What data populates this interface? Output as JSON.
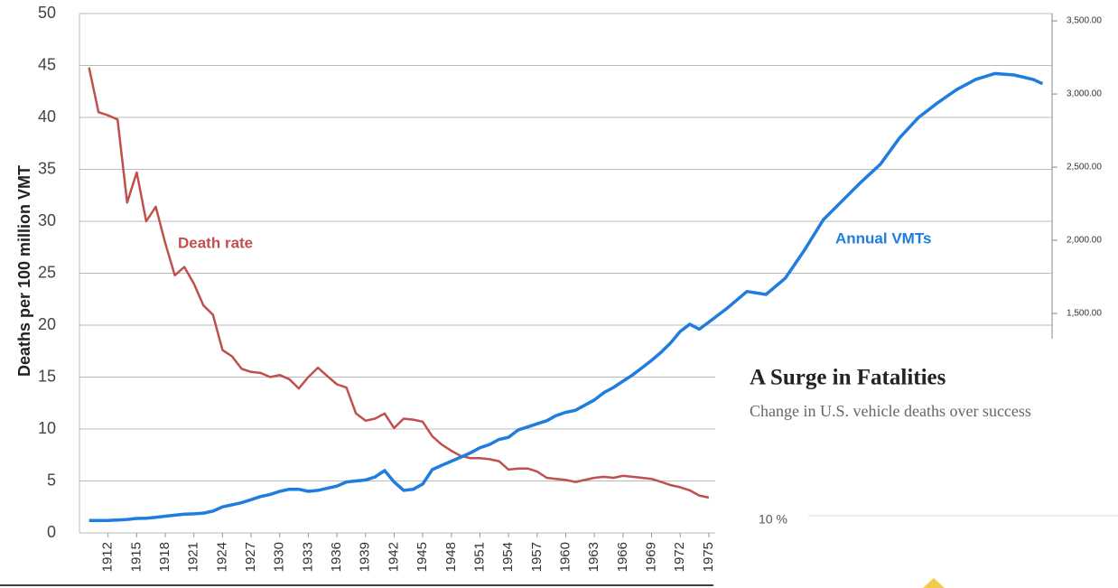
{
  "chart_data": {
    "type": "line",
    "y_label": "Deaths  per 100 million VMT",
    "annotations": [
      {
        "text": "Death rate",
        "color": "#c0504d"
      },
      {
        "text": "Annual VMTs",
        "color": "#1f7de0"
      }
    ],
    "x": [
      1910,
      1911,
      1912,
      1913,
      1914,
      1915,
      1916,
      1917,
      1918,
      1919,
      1920,
      1921,
      1922,
      1923,
      1924,
      1925,
      1926,
      1927,
      1928,
      1929,
      1930,
      1931,
      1932,
      1933,
      1934,
      1935,
      1936,
      1937,
      1938,
      1939,
      1940,
      1941,
      1942,
      1943,
      1944,
      1945,
      1946,
      1947,
      1948,
      1949,
      1950,
      1951,
      1952,
      1953,
      1954,
      1955,
      1956,
      1957,
      1958,
      1959,
      1960,
      1961,
      1962,
      1963,
      1964,
      1965,
      1966,
      1967,
      1968,
      1969,
      1970,
      1971,
      1972,
      1973,
      1974,
      1975,
      1977,
      1979,
      1981,
      1983,
      1985,
      1987,
      1989,
      1991,
      1993,
      1995,
      1997,
      1999,
      2001,
      2003,
      2005,
      2007,
      2009,
      2010
    ],
    "series": [
      {
        "name": "Death rate",
        "color": "#c0504d",
        "axis": "y",
        "values": [
          44.8,
          40.5,
          40.2,
          39.8,
          31.8,
          34.7,
          30.0,
          31.4,
          27.9,
          24.8,
          25.6,
          24.0,
          21.9,
          21.0,
          17.6,
          17.0,
          15.8,
          15.5,
          15.4,
          15.0,
          15.2,
          14.8,
          13.9,
          15.0,
          15.9,
          15.1,
          14.3,
          14.0,
          11.5,
          10.8,
          11.0,
          11.5,
          10.1,
          11.0,
          10.9,
          10.7,
          9.3,
          8.5,
          7.9,
          7.4,
          7.2,
          7.2,
          7.1,
          6.9,
          6.1,
          6.2,
          6.2,
          5.9,
          5.3,
          5.2,
          5.1,
          4.9,
          5.1,
          5.3,
          5.4,
          5.3,
          5.5,
          5.4,
          5.3,
          5.2,
          4.9,
          4.6,
          4.4,
          4.1,
          3.6,
          3.4,
          null,
          null,
          null,
          null,
          null,
          null,
          null,
          null,
          null,
          null,
          null,
          null,
          null,
          null,
          null,
          null,
          null,
          null
        ]
      },
      {
        "name": "Annual VMTs",
        "color": "#1f7de0",
        "axis": "y2",
        "values": [
          85,
          85,
          85,
          88,
          92,
          99,
          100,
          107,
          114,
          121,
          128,
          130,
          135,
          149,
          178,
          192,
          206,
          227,
          249,
          263,
          284,
          298,
          298,
          284,
          291,
          305,
          320,
          348,
          355,
          362,
          383,
          426,
          348,
          291,
          298,
          334,
          433,
          462,
          490,
          518,
          547,
          582,
          604,
          639,
          653,
          703,
          724,
          746,
          767,
          802,
          824,
          838,
          873,
          909,
          959,
          994,
          1037,
          1079,
          1129,
          1179,
          1235,
          1299,
          1377,
          1427,
          1392,
          1441,
          1540,
          1650,
          1630,
          1740,
          1930,
          2140,
          2270,
          2400,
          2520,
          2700,
          2840,
          2940,
          3030,
          3100,
          3140,
          3130,
          3100,
          3070
        ]
      }
    ],
    "xlim": [
      1909,
      2011
    ],
    "xticks": [
      1912,
      1915,
      1918,
      1921,
      1924,
      1927,
      1930,
      1933,
      1936,
      1939,
      1942,
      1945,
      1948,
      1951,
      1954,
      1957,
      1960,
      1963,
      1966,
      1969,
      1972,
      1975
    ],
    "ylim": [
      0,
      50
    ],
    "yticks": [
      0,
      5,
      10,
      15,
      20,
      25,
      30,
      35,
      40,
      45,
      50
    ],
    "y2lim": [
      0,
      3550
    ],
    "y2ticks": [
      {
        "value": 1500,
        "label": "1,500.00"
      },
      {
        "value": 2000,
        "label": "2,000.00"
      },
      {
        "value": 2500,
        "label": "2,500.00"
      },
      {
        "value": 3000,
        "label": "3,000.00"
      },
      {
        "value": 3500,
        "label": "3,500.00"
      }
    ],
    "grid": true
  },
  "overlay": {
    "title": "A Surge in Fatalities",
    "subtitle": "Change in U.S. vehicle deaths over success",
    "tick": "10 %"
  }
}
